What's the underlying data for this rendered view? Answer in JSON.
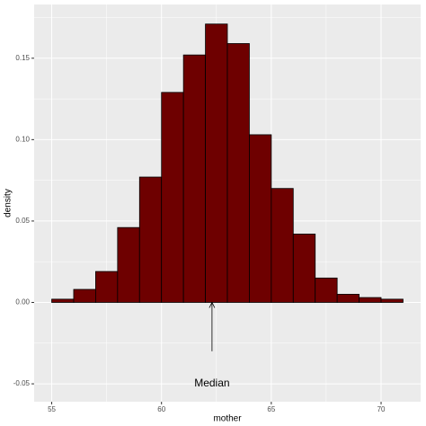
{
  "chart_data": {
    "type": "histogram",
    "x_label": "mother",
    "y_label": "density",
    "bins": [
      55,
      56,
      57,
      58,
      59,
      60,
      61,
      62,
      63,
      64,
      65,
      66,
      67,
      68,
      69,
      70,
      71
    ],
    "values": [
      0.002,
      0.008,
      0.019,
      0.046,
      0.077,
      0.129,
      0.152,
      0.171,
      0.159,
      0.103,
      0.07,
      0.042,
      0.015,
      0.005,
      0.003,
      0.002
    ],
    "color": "#6e0000",
    "xlim": [
      54.2,
      71.8
    ],
    "xticks": [
      55,
      60,
      65,
      70
    ],
    "ylim": [
      -0.061,
      0.183
    ],
    "yticks": [
      -0.05,
      {
        "value": 0,
        "label": "0.00"
      },
      0.05,
      {
        "value": 0.1,
        "label": "0.10"
      },
      0.15
    ],
    "grid": true,
    "annotation": {
      "text": "Median",
      "x": 62.3,
      "y": -0.05
    },
    "arrow": {
      "x": 62.3,
      "y_start": -0.03,
      "y_end": 0
    }
  }
}
